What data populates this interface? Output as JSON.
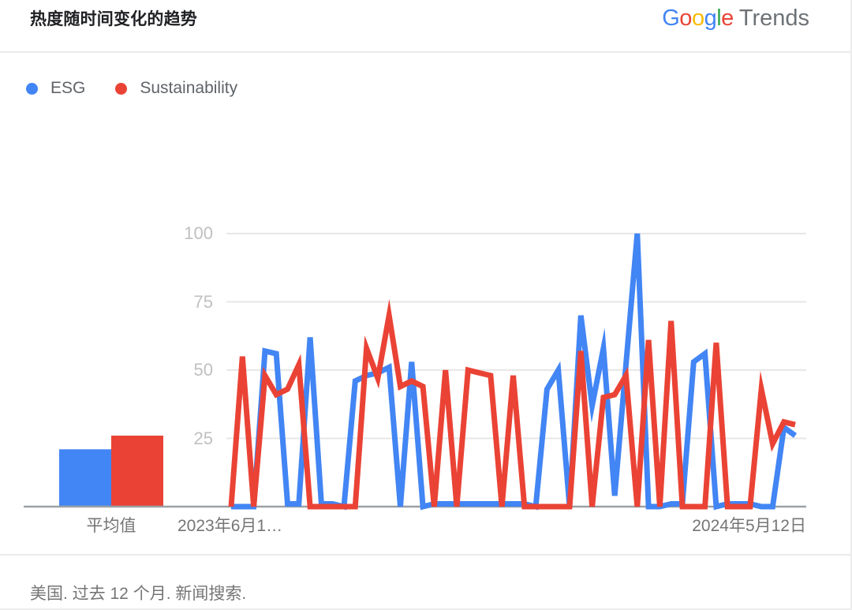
{
  "header": {
    "title": "热度随时间变化的趋势",
    "logo": {
      "letters": [
        {
          "ch": "G",
          "color": "#4285F4"
        },
        {
          "ch": "o",
          "color": "#EA4335"
        },
        {
          "ch": "o",
          "color": "#FBBC05"
        },
        {
          "ch": "g",
          "color": "#4285F4"
        },
        {
          "ch": "l",
          "color": "#34A853"
        },
        {
          "ch": "e",
          "color": "#EA4335"
        }
      ],
      "suffix": "Trends"
    }
  },
  "legend": [
    {
      "label": "ESG",
      "color": "#4285F4"
    },
    {
      "label": "Sustainability",
      "color": "#EA4335"
    }
  ],
  "chart_data": {
    "type": "line",
    "title": "热度随时间变化的趋势",
    "ylim": [
      0,
      100
    ],
    "yticks": [
      25,
      50,
      75,
      100
    ],
    "grid": true,
    "legend_position": "top-left",
    "x_axis_labels": [
      "2023年6月1…",
      "2024年5月12日"
    ],
    "x_range_note": "weekly points, past 12 months",
    "series": [
      {
        "name": "ESG",
        "color": "#4285F4",
        "values": [
          0,
          0,
          0,
          57,
          56,
          1,
          1,
          62,
          1,
          1,
          0,
          46,
          48,
          49,
          51,
          0,
          53,
          0,
          1,
          1,
          1,
          1,
          1,
          1,
          1,
          1,
          1,
          0,
          43,
          50,
          0,
          70,
          37,
          58,
          4,
          52,
          100,
          0,
          0,
          1,
          1,
          53,
          56,
          0,
          1,
          1,
          1,
          0,
          0,
          29,
          26
        ]
      },
      {
        "name": "Sustainability",
        "color": "#EA4335",
        "values": [
          0,
          55,
          0,
          48,
          41,
          43,
          52,
          0,
          0,
          0,
          0,
          0,
          58,
          47,
          70,
          44,
          46,
          44,
          0,
          50,
          0,
          50,
          49,
          48,
          0,
          48,
          0,
          0,
          0,
          0,
          0,
          57,
          0,
          40,
          41,
          48,
          0,
          61,
          0,
          68,
          0,
          0,
          0,
          60,
          0,
          0,
          0,
          43,
          23,
          31,
          30
        ]
      }
    ],
    "averages": {
      "label": "平均值",
      "values": [
        {
          "name": "ESG",
          "value": 21,
          "color": "#4285F4"
        },
        {
          "name": "Sustainability",
          "value": 26,
          "color": "#EA4335"
        }
      ]
    }
  },
  "footer": {
    "text": "美国. 过去 12 个月. 新闻搜索."
  }
}
